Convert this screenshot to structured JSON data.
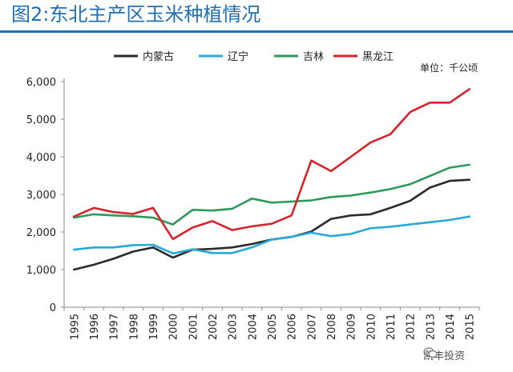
{
  "header": {
    "title": "图2:东北主产区玉米种植情况"
  },
  "chart_data": {
    "type": "line",
    "title": "",
    "unit": "单位：千公顷",
    "xlabel": "",
    "ylabel": "",
    "ylim": [
      0,
      6000
    ],
    "yticks": [
      "0",
      "1,000",
      "2,000",
      "3,000",
      "4,000",
      "5,000",
      "6,000"
    ],
    "categories": [
      "1995",
      "1996",
      "1997",
      "1998",
      "1999",
      "2000",
      "2001",
      "2002",
      "2003",
      "2004",
      "2005",
      "2006",
      "2007",
      "2008",
      "2009",
      "2010",
      "2011",
      "2012",
      "2013",
      "2014",
      "2015"
    ],
    "legend_position": "top",
    "grid": false,
    "series": [
      {
        "name": "内蒙古",
        "color": "#2b2b2b",
        "values": [
          1000,
          1130,
          1290,
          1480,
          1590,
          1320,
          1530,
          1550,
          1590,
          1680,
          1800,
          1870,
          2010,
          2350,
          2440,
          2470,
          2640,
          2830,
          3180,
          3360,
          3390
        ]
      },
      {
        "name": "辽宁",
        "color": "#29a9d8",
        "values": [
          1530,
          1590,
          1590,
          1650,
          1660,
          1430,
          1540,
          1440,
          1440,
          1590,
          1800,
          1870,
          1980,
          1890,
          1950,
          2100,
          2140,
          2200,
          2260,
          2320,
          2410
        ]
      },
      {
        "name": "吉林",
        "color": "#2e9a5a",
        "values": [
          2380,
          2470,
          2440,
          2420,
          2380,
          2200,
          2590,
          2570,
          2620,
          2890,
          2780,
          2810,
          2840,
          2930,
          2970,
          3050,
          3140,
          3270,
          3490,
          3710,
          3790
        ]
      },
      {
        "name": "黑龙江",
        "color": "#d8232a",
        "values": [
          2410,
          2640,
          2530,
          2480,
          2640,
          1810,
          2120,
          2290,
          2050,
          2150,
          2220,
          2440,
          3900,
          3620,
          4000,
          4380,
          4600,
          5190,
          5440,
          5440,
          5800
        ]
      }
    ]
  },
  "watermark": {
    "text": "凯丰投资",
    "icon": "wechat-icon"
  }
}
